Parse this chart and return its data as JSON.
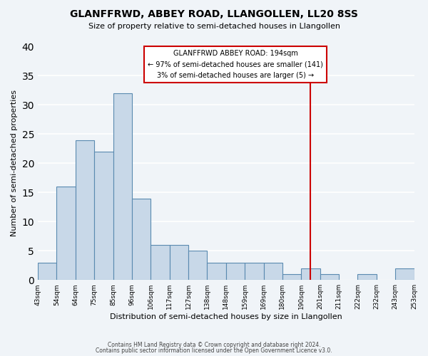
{
  "title": "GLANFFRWD, ABBEY ROAD, LLANGOLLEN, LL20 8SS",
  "subtitle": "Size of property relative to semi-detached houses in Llangollen",
  "xlabel": "Distribution of semi-detached houses by size in Llangollen",
  "ylabel": "Number of semi-detached properties",
  "tick_labels": [
    "43sqm",
    "54sqm",
    "64sqm",
    "75sqm",
    "85sqm",
    "96sqm",
    "106sqm",
    "117sqm",
    "127sqm",
    "138sqm",
    "148sqm",
    "159sqm",
    "169sqm",
    "180sqm",
    "190sqm",
    "201sqm",
    "211sqm",
    "222sqm",
    "232sqm",
    "243sqm",
    "253sqm"
  ],
  "values": [
    3,
    16,
    24,
    22,
    32,
    14,
    6,
    6,
    5,
    3,
    3,
    3,
    3,
    1,
    2,
    1,
    0,
    1,
    0,
    2
  ],
  "bar_color": "#c8d8e8",
  "bar_edge_color": "#5a8ab0",
  "vline_x": 14.5,
  "vline_color": "#cc0000",
  "annotation_title": "GLANFFRWD ABBEY ROAD: 194sqm",
  "annotation_line1": "← 97% of semi-detached houses are smaller (141)",
  "annotation_line2": "3% of semi-detached houses are larger (5) →",
  "annotation_box_color": "#ffffff",
  "annotation_box_edge": "#cc0000",
  "ylim": [
    0,
    40
  ],
  "yticks": [
    0,
    5,
    10,
    15,
    20,
    25,
    30,
    35,
    40
  ],
  "footnote1": "Contains HM Land Registry data © Crown copyright and database right 2024.",
  "footnote2": "Contains public sector information licensed under the Open Government Licence v3.0.",
  "background_color": "#f0f4f8",
  "grid_color": "#ffffff"
}
